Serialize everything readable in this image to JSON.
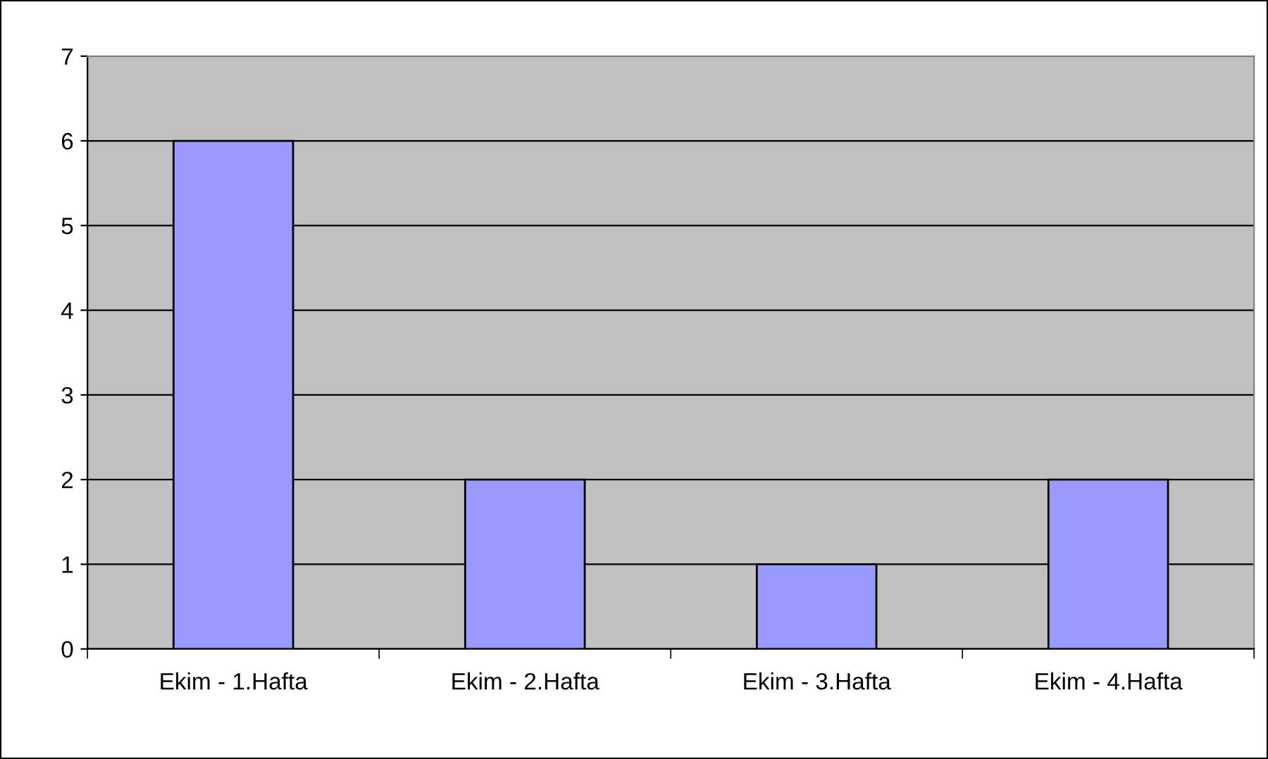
{
  "chart_data": {
    "type": "bar",
    "categories": [
      "Ekim - 1.Hafta",
      "Ekim - 2.Hafta",
      "Ekim - 3.Hafta",
      "Ekim - 4.Hafta"
    ],
    "values": [
      6,
      2,
      1,
      2
    ],
    "color": "#9999ff",
    "ylim": [
      0,
      7
    ],
    "yticks": [
      0,
      1,
      2,
      3,
      4,
      5,
      6,
      7
    ],
    "grid": "y"
  }
}
